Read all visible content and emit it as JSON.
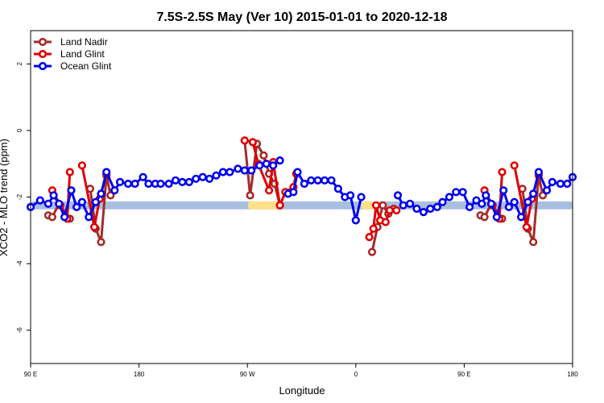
{
  "chart_data": {
    "type": "line",
    "title": "7.5S-2.5S May (Ver 10)   2015-01-01 to 2020-12-18",
    "xlabel": "Longitude",
    "ylabel": "XCO2 - MLO trend (ppm)",
    "xlim": [
      90,
      450
    ],
    "ylim": [
      -7,
      3
    ],
    "x_ticks": [
      {
        "value": 90,
        "label": "90 E"
      },
      {
        "value": 162,
        "label": "180"
      },
      {
        "value": 234,
        "label": "90 W"
      },
      {
        "value": 306,
        "label": "0"
      },
      {
        "value": 378,
        "label": "90 E"
      },
      {
        "value": 450,
        "label": "180"
      }
    ],
    "y_ticks": [
      {
        "value": 2,
        "label": "2"
      },
      {
        "value": 0,
        "label": "0"
      },
      {
        "value": -2,
        "label": "-2"
      },
      {
        "value": -4,
        "label": "-4"
      },
      {
        "value": -6,
        "label": "-6"
      }
    ],
    "legend_position": "top-left",
    "bands": [
      {
        "type": "blue",
        "y_center": -2.25,
        "y_half_width": 0.12,
        "x_start": 90,
        "x_end": 450,
        "color": "#a9bfdf"
      },
      {
        "type": "yellow",
        "y_center": -2.25,
        "y_half_width": 0.12,
        "x_start": 234.5,
        "x_end": 254.3,
        "color": "#ffe08a"
      },
      {
        "type": "yellow",
        "y_center": -2.25,
        "y_half_width": 0.12,
        "x_start": 309.6,
        "x_end": 322.2,
        "color": "#ffe08a"
      }
    ],
    "series": [
      {
        "name": "Land Nadir",
        "color": "#a52a2a",
        "segments": [
          [
            [
              101.7,
              -2.55
            ],
            [
              104.4,
              -2.6
            ],
            [
              108.9,
              -2.2
            ],
            [
              116.1,
              -2.65
            ]
          ],
          [
            [
              129.6,
              -1.75
            ],
            [
              133.2,
              -2.95
            ],
            [
              136.8,
              -3.35
            ],
            [
              140.4,
              -1.35
            ],
            [
              143.1,
              -1.95
            ]
          ],
          [
            [
              232.2,
              -0.3
            ],
            [
              235.8,
              -1.95
            ],
            [
              240.3,
              -0.4
            ],
            [
              244.8,
              -0.75
            ],
            [
              248.4,
              -1.3
            ],
            [
              252.0,
              -1.6
            ],
            [
              255.6,
              -2.25
            ]
          ],
          [
            [
              316.8,
              -3.65
            ],
            [
              320.4,
              -2.9
            ],
            [
              324.0,
              -2.25
            ],
            [
              327.6,
              -2.5
            ],
            [
              331.2,
              -2.35
            ]
          ],
          [
            [
              388.8,
              -2.55
            ],
            [
              391.5,
              -2.6
            ],
            [
              396.0,
              -2.2
            ],
            [
              403.2,
              -2.65
            ]
          ],
          [
            [
              416.7,
              -1.75
            ],
            [
              420.3,
              -2.95
            ],
            [
              423.9,
              -3.35
            ],
            [
              427.5,
              -1.35
            ],
            [
              430.2,
              -1.95
            ]
          ]
        ]
      },
      {
        "name": "Land Glint",
        "color": "#e00000",
        "segments": [
          [
            [
              104.4,
              -1.8
            ],
            [
              109.8,
              -2.25
            ],
            [
              114.3,
              -2.65
            ],
            [
              116.1,
              -1.25
            ]
          ],
          [
            [
              124.2,
              -1.05
            ],
            [
              132.3,
              -2.9
            ],
            [
              135.9,
              -2.05
            ],
            [
              140.4,
              -1.3
            ]
          ],
          [
            [
              232.2,
              -0.3
            ],
            [
              237.6,
              -0.35
            ],
            [
              241.2,
              -1.0
            ],
            [
              248.4,
              -1.8
            ],
            [
              251.1,
              -0.95
            ],
            [
              255.6,
              -2.25
            ],
            [
              259.2,
              -1.85
            ],
            [
              264.6,
              -1.7
            ],
            [
              266.4,
              -1.3
            ]
          ],
          [
            [
              315.0,
              -3.2
            ],
            [
              317.7,
              -2.95
            ],
            [
              319.5,
              -2.25
            ],
            [
              322.2,
              -2.7
            ],
            [
              325.8,
              -2.75
            ],
            [
              328.5,
              -2.4
            ],
            [
              333.0,
              -2.4
            ]
          ],
          [
            [
              391.5,
              -1.8
            ],
            [
              396.9,
              -2.25
            ],
            [
              401.4,
              -2.65
            ],
            [
              403.2,
              -1.25
            ]
          ],
          [
            [
              411.3,
              -1.05
            ],
            [
              419.4,
              -2.9
            ],
            [
              423.0,
              -2.05
            ],
            [
              427.5,
              -1.3
            ]
          ]
        ]
      },
      {
        "name": "Ocean Glint",
        "color": "#0000ee",
        "segments": [
          [
            [
              90.0,
              -2.3
            ],
            [
              96.3,
              -2.1
            ],
            [
              101.7,
              -2.2
            ],
            [
              105.3,
              -1.95
            ],
            [
              108.9,
              -2.2
            ],
            [
              112.5,
              -2.6
            ],
            [
              117.0,
              -1.8
            ],
            [
              120.6,
              -2.3
            ],
            [
              124.2,
              -2.15
            ],
            [
              128.7,
              -2.6
            ],
            [
              133.2,
              -2.15
            ],
            [
              136.8,
              -1.9
            ],
            [
              140.4,
              -1.25
            ],
            [
              145.8,
              -1.8
            ],
            [
              149.4,
              -1.55
            ],
            [
              154.8,
              -1.6
            ],
            [
              159.3,
              -1.6
            ],
            [
              164.7,
              -1.4
            ],
            [
              168.3,
              -1.6
            ],
            [
              172.8,
              -1.6
            ],
            [
              176.4,
              -1.6
            ],
            [
              181.8,
              -1.6
            ],
            [
              186.3,
              -1.5
            ],
            [
              190.8,
              -1.55
            ],
            [
              195.3,
              -1.55
            ],
            [
              199.8,
              -1.45
            ],
            [
              204.3,
              -1.4
            ],
            [
              208.8,
              -1.45
            ],
            [
              213.3,
              -1.35
            ],
            [
              217.8,
              -1.25
            ],
            [
              222.3,
              -1.25
            ],
            [
              227.7,
              -1.15
            ],
            [
              232.2,
              -1.2
            ],
            [
              236.7,
              -1.2
            ],
            [
              242.1,
              -1.05
            ],
            [
              246.6,
              -1.0
            ],
            [
              251.1,
              -1.05
            ],
            [
              255.6,
              -0.9
            ]
          ],
          [
            [
              261.0,
              -1.9
            ],
            [
              264.6,
              -1.85
            ],
            [
              267.3,
              -1.25
            ],
            [
              271.8,
              -1.6
            ],
            [
              276.3,
              -1.5
            ],
            [
              280.8,
              -1.5
            ],
            [
              285.3,
              -1.5
            ],
            [
              289.8,
              -1.5
            ],
            [
              294.3,
              -1.75
            ],
            [
              298.8,
              -2.0
            ],
            [
              302.4,
              -1.95
            ],
            [
              306.0,
              -2.7
            ],
            [
              309.6,
              -2.0
            ]
          ],
          [
            [
              333.9,
              -1.95
            ],
            [
              337.5,
              -2.25
            ],
            [
              342.0,
              -2.2
            ],
            [
              346.5,
              -2.35
            ],
            [
              351.0,
              -2.45
            ],
            [
              355.5,
              -2.35
            ],
            [
              360.0,
              -2.3
            ],
            [
              363.6,
              -2.15
            ],
            [
              368.1,
              -2.0
            ],
            [
              372.6,
              -1.85
            ],
            [
              377.1,
              -1.85
            ],
            [
              381.6,
              -2.3
            ],
            [
              386.1,
              -2.1
            ],
            [
              389.7,
              -2.2
            ],
            [
              392.4,
              -1.95
            ],
            [
              396.0,
              -2.2
            ],
            [
              399.6,
              -2.6
            ],
            [
              404.1,
              -1.8
            ],
            [
              407.7,
              -2.3
            ],
            [
              411.3,
              -2.15
            ],
            [
              415.8,
              -2.6
            ],
            [
              420.3,
              -2.15
            ],
            [
              423.9,
              -1.9
            ],
            [
              427.5,
              -1.25
            ],
            [
              432.9,
              -1.8
            ],
            [
              436.5,
              -1.55
            ],
            [
              441.9,
              -1.6
            ],
            [
              446.4,
              -1.6
            ],
            [
              450.0,
              -1.4
            ]
          ]
        ]
      }
    ]
  }
}
